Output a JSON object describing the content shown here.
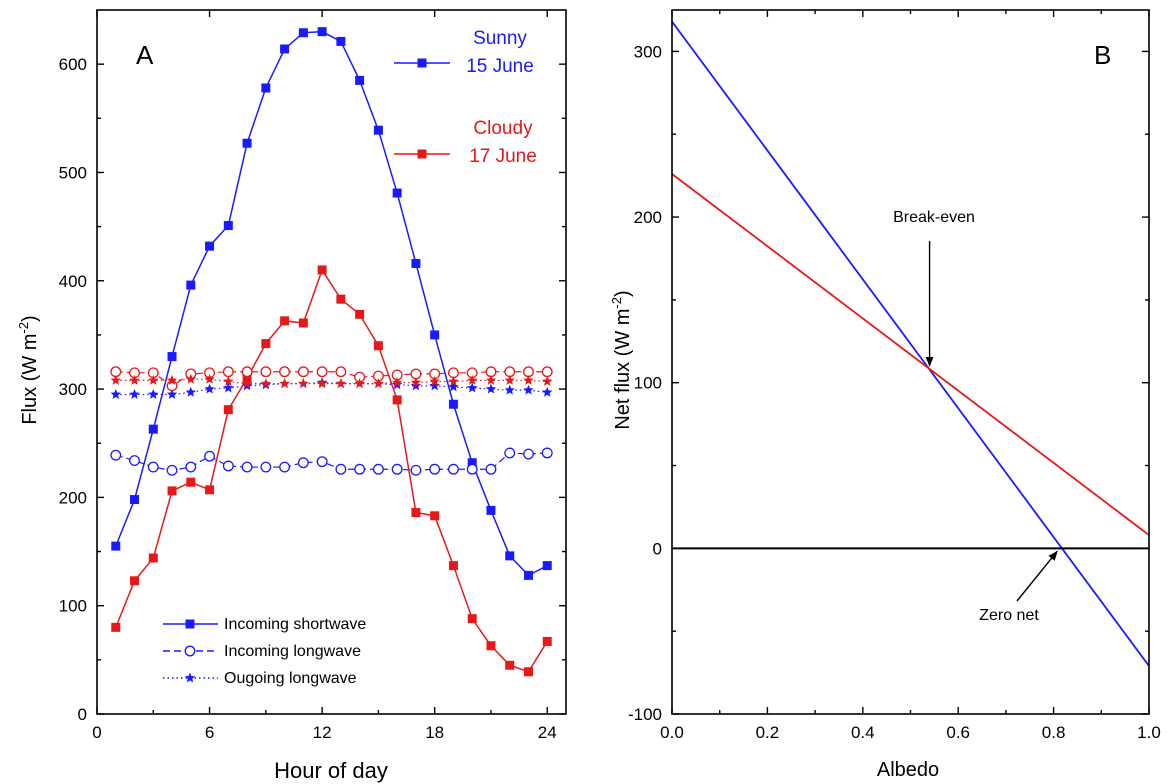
{
  "chart_data": [
    {
      "type": "line",
      "panel_label": "A",
      "xlabel": "Hour of day",
      "ylabel": "Flux (W m-2)",
      "ylabel_main": "Flux (W m",
      "ylabel_sup": "-2",
      "ylabel_close": ")",
      "xlim": [
        0,
        25
      ],
      "ylim": [
        0,
        650
      ],
      "xticks": [
        0,
        6,
        12,
        18,
        24
      ],
      "yticks": [
        0,
        100,
        200,
        300,
        400,
        500,
        600
      ],
      "legend": {
        "placement": "bottom-left",
        "entries": [
          {
            "label": "Incoming shortwave",
            "marker": "square",
            "line": "solid"
          },
          {
            "label": "Incoming longwave",
            "marker": "open-circle",
            "line": "dashed"
          },
          {
            "label": "Ougoing longwave",
            "marker": "star",
            "line": "dotted"
          }
        ]
      },
      "day_labels": [
        {
          "line1": "Sunny",
          "line2": "15 June",
          "color": "#1a1aff"
        },
        {
          "line1": "Cloudy",
          "line2": "17 June",
          "color": "#e6191a"
        }
      ],
      "x": [
        1,
        2,
        3,
        4,
        5,
        6,
        7,
        8,
        9,
        10,
        11,
        12,
        13,
        14,
        15,
        16,
        17,
        18,
        19,
        20,
        21,
        22,
        23,
        24
      ],
      "series": [
        {
          "name": "Incoming shortwave",
          "day": "Sunny 15 June",
          "color": "#1a1aff",
          "marker": "square",
          "line": "solid",
          "values": [
            155,
            198,
            263,
            330,
            396,
            432,
            451,
            527,
            578,
            614,
            629,
            630,
            621,
            585,
            539,
            481,
            416,
            350,
            286,
            232,
            188,
            146,
            128,
            137
          ]
        },
        {
          "name": "Incoming longwave",
          "day": "Sunny 15 June",
          "color": "#1a1aff",
          "marker": "open-circle",
          "line": "dashed",
          "values": [
            239,
            234,
            228,
            225,
            228,
            238,
            229,
            228,
            228,
            228,
            232,
            233,
            226,
            226,
            226,
            226,
            225,
            226,
            226,
            226,
            226,
            241,
            240,
            241
          ]
        },
        {
          "name": "Ougoing longwave",
          "day": "Sunny 15 June",
          "color": "#1a1aff",
          "marker": "star",
          "line": "dotted",
          "values": [
            295,
            295,
            295,
            295,
            297,
            300,
            301,
            303,
            304,
            305,
            305,
            306,
            305,
            305,
            305,
            304,
            303,
            303,
            302,
            301,
            300,
            299,
            299,
            297
          ]
        },
        {
          "name": "Incoming shortwave",
          "day": "Cloudy 17 June",
          "color": "#e6191a",
          "marker": "square",
          "line": "solid",
          "values": [
            80,
            123,
            144,
            206,
            214,
            207,
            281,
            310,
            342,
            363,
            361,
            410,
            383,
            369,
            340,
            290,
            186,
            183,
            137,
            88,
            63,
            45,
            39,
            67
          ]
        },
        {
          "name": "Incoming longwave",
          "day": "Cloudy 17 June",
          "color": "#e6191a",
          "marker": "open-circle",
          "line": "dashed",
          "values": [
            316,
            315,
            315,
            303,
            314,
            315,
            316,
            316,
            316,
            316,
            316,
            316,
            316,
            311,
            312,
            313,
            314,
            314,
            315,
            315,
            316,
            316,
            316,
            316
          ]
        },
        {
          "name": "Ougoing longwave",
          "day": "Cloudy 17 June",
          "color": "#e6191a",
          "marker": "star",
          "line": "dotted",
          "values": [
            308,
            308,
            308,
            308,
            309,
            309,
            307,
            305,
            305,
            305,
            305,
            305,
            305,
            305,
            305,
            306,
            306,
            307,
            307,
            308,
            308,
            308,
            308,
            307
          ]
        }
      ]
    },
    {
      "type": "line",
      "panel_label": "B",
      "xlabel": "Albedo",
      "ylabel": "Net flux (W m-2)",
      "ylabel_main": "Net flux (W m",
      "ylabel_sup": "-2",
      "ylabel_close": ")",
      "xlim": [
        0,
        1
      ],
      "ylim": [
        -100,
        325
      ],
      "xticks": [
        0.0,
        0.2,
        0.4,
        0.6,
        0.8,
        1.0
      ],
      "xtick_labels": [
        "0.0",
        "0.2",
        "0.4",
        "0.6",
        "0.8",
        "1.0"
      ],
      "yticks": [
        -100,
        0,
        100,
        200,
        300
      ],
      "series": [
        {
          "name": "Sunny 15 June",
          "color": "#1a1aff",
          "x": [
            0,
            1
          ],
          "values": [
            318,
            -71
          ]
        },
        {
          "name": "Cloudy 17 June",
          "color": "#e6191a",
          "x": [
            0,
            1
          ],
          "values": [
            226,
            8
          ]
        },
        {
          "name": "Zero line",
          "color": "#000000",
          "x": [
            0,
            1
          ],
          "values": [
            0,
            0
          ]
        }
      ],
      "annotations": [
        {
          "text": "Break-even",
          "point": [
            0.54,
            109
          ],
          "label_at": [
            0.54,
            200
          ],
          "arrow": "down"
        },
        {
          "text": "Zero net",
          "point": [
            0.818,
            0
          ],
          "label_at": [
            0.76,
            -42
          ],
          "arrow": "up-right"
        }
      ]
    }
  ]
}
